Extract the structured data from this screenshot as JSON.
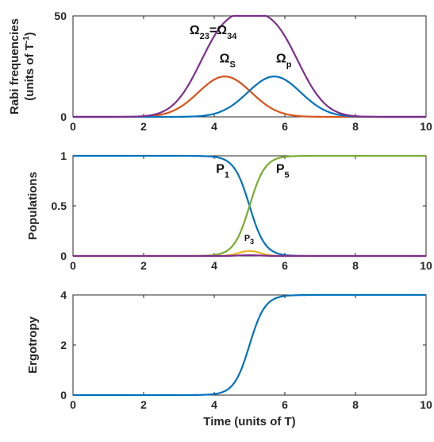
{
  "chart_data": [
    {
      "type": "line",
      "ylabel": "Rabi frequencies",
      "ylabel_line2": "(units of T",
      "ylabel_sup": "-1",
      "ylabel_close": ")",
      "xlim": [
        0,
        10
      ],
      "ylim": [
        0,
        50
      ],
      "xticks": [
        0,
        2,
        4,
        6,
        8,
        10
      ],
      "yticks": [
        0,
        50
      ],
      "tick_labels_x": [
        "0",
        "2",
        "4",
        "6",
        "8",
        "10"
      ],
      "tick_labels_y": [
        "0",
        "50"
      ],
      "series": [
        {
          "key": "omega_s",
          "color": "#D95319",
          "gaussian": {
            "amplitude": 20,
            "center": 4.3,
            "sigma": 0.75
          }
        },
        {
          "key": "omega_p",
          "color": "#0072BD",
          "gaussian": {
            "amplitude": 20,
            "center": 5.7,
            "sigma": 0.75
          }
        },
        {
          "key": "omega_sum",
          "color": "#7E2F8E",
          "sum_of": [
            "omega_s",
            "omega_p"
          ],
          "scale": 2
        }
      ],
      "annotations": [
        {
          "key": "omega_23_34",
          "text": "Ω",
          "sub": "23",
          "text2": "=Ω",
          "sub2": "34",
          "x": 3.3,
          "y": 41
        },
        {
          "key": "omega_s_label",
          "text": "Ω",
          "sub": "S",
          "x": 4.15,
          "y": 27
        },
        {
          "key": "omega_p_label",
          "text": "Ω",
          "sub": "p",
          "x": 5.75,
          "y": 27
        }
      ]
    },
    {
      "type": "line",
      "ylabel": "Populations",
      "xlim": [
        0,
        10
      ],
      "ylim": [
        0,
        1
      ],
      "xticks": [
        0,
        2,
        4,
        6,
        8,
        10
      ],
      "yticks": [
        0,
        0.5,
        1
      ],
      "tick_labels_x": [
        "0",
        "2",
        "4",
        "6",
        "8",
        "10"
      ],
      "tick_labels_y": [
        "0",
        "0.5",
        "1"
      ],
      "series": [
        {
          "key": "p1",
          "color": "#0072BD",
          "sigmoid": {
            "start": 1,
            "end": 0,
            "center": 5.0,
            "width": 0.22
          }
        },
        {
          "key": "p5",
          "color": "#77AC30",
          "sigmoid": {
            "start": 0,
            "end": 1,
            "center": 5.0,
            "width": 0.22
          }
        },
        {
          "key": "p3",
          "color": "#EDB120",
          "gaussian": {
            "amplitude": 0.05,
            "center": 5.0,
            "sigma": 0.3
          }
        },
        {
          "key": "p_other",
          "color": "#7E2F8E",
          "gaussian": {
            "amplitude": 0.008,
            "center": 5.0,
            "sigma": 0.3
          }
        }
      ],
      "annotations": [
        {
          "key": "p1_label",
          "text": "P",
          "sub": "1",
          "x": 4.05,
          "y": 0.83
        },
        {
          "key": "p5_label",
          "text": "P",
          "sub": "5",
          "x": 5.75,
          "y": 0.83
        },
        {
          "key": "p3_label",
          "text": "P",
          "sub": "3",
          "x": 4.85,
          "y": 0.15,
          "small": true
        }
      ]
    },
    {
      "type": "line",
      "ylabel": "Ergotropy",
      "xlabel": "Time (units of T)",
      "xlim": [
        0,
        10
      ],
      "ylim": [
        0,
        4
      ],
      "xticks": [
        0,
        2,
        4,
        6,
        8,
        10
      ],
      "yticks": [
        0,
        2,
        4
      ],
      "tick_labels_x": [
        "0",
        "2",
        "4",
        "6",
        "8",
        "10"
      ],
      "tick_labels_y": [
        "0",
        "2",
        "4"
      ],
      "series": [
        {
          "key": "ergotropy",
          "color": "#0072BD",
          "sigmoid": {
            "start": 0,
            "end": 4,
            "center": 5.0,
            "width": 0.22
          }
        }
      ],
      "annotations": []
    }
  ]
}
